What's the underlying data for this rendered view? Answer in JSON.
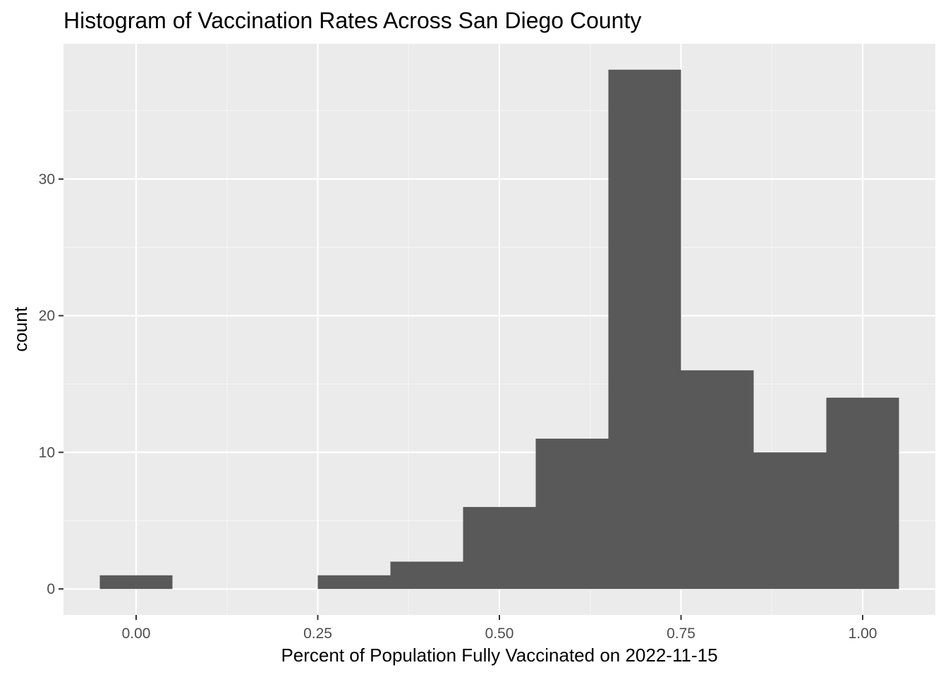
{
  "chart_data": {
    "type": "bar",
    "title": "Histogram of Vaccination Rates Across San Diego County",
    "xlabel": "Percent of Population Fully Vaccinated on 2022-11-15",
    "ylabel": "count",
    "xlim": [
      -0.1,
      1.1
    ],
    "ylim": [
      -1.9,
      39.9
    ],
    "x_ticks": [
      0.0,
      0.25,
      0.5,
      0.75,
      1.0
    ],
    "x_tick_labels": [
      "0.00",
      "0.25",
      "0.50",
      "0.75",
      "1.00"
    ],
    "y_ticks": [
      0,
      10,
      20,
      30
    ],
    "y_tick_labels": [
      "0",
      "10",
      "20",
      "30"
    ],
    "bin_width": 0.1,
    "bins": [
      {
        "center": 0.0,
        "count": 1
      },
      {
        "center": 0.1,
        "count": 0
      },
      {
        "center": 0.2,
        "count": 0
      },
      {
        "center": 0.3,
        "count": 1
      },
      {
        "center": 0.4,
        "count": 2
      },
      {
        "center": 0.5,
        "count": 6
      },
      {
        "center": 0.6,
        "count": 11
      },
      {
        "center": 0.7,
        "count": 38
      },
      {
        "center": 0.8,
        "count": 16
      },
      {
        "center": 0.9,
        "count": 10
      },
      {
        "center": 1.0,
        "count": 14
      }
    ],
    "grid": true,
    "colors": {
      "panel_background": "#ebebeb",
      "grid_major": "#ffffff",
      "grid_minor": "#f5f5f5",
      "bar_fill": "#595959"
    }
  }
}
